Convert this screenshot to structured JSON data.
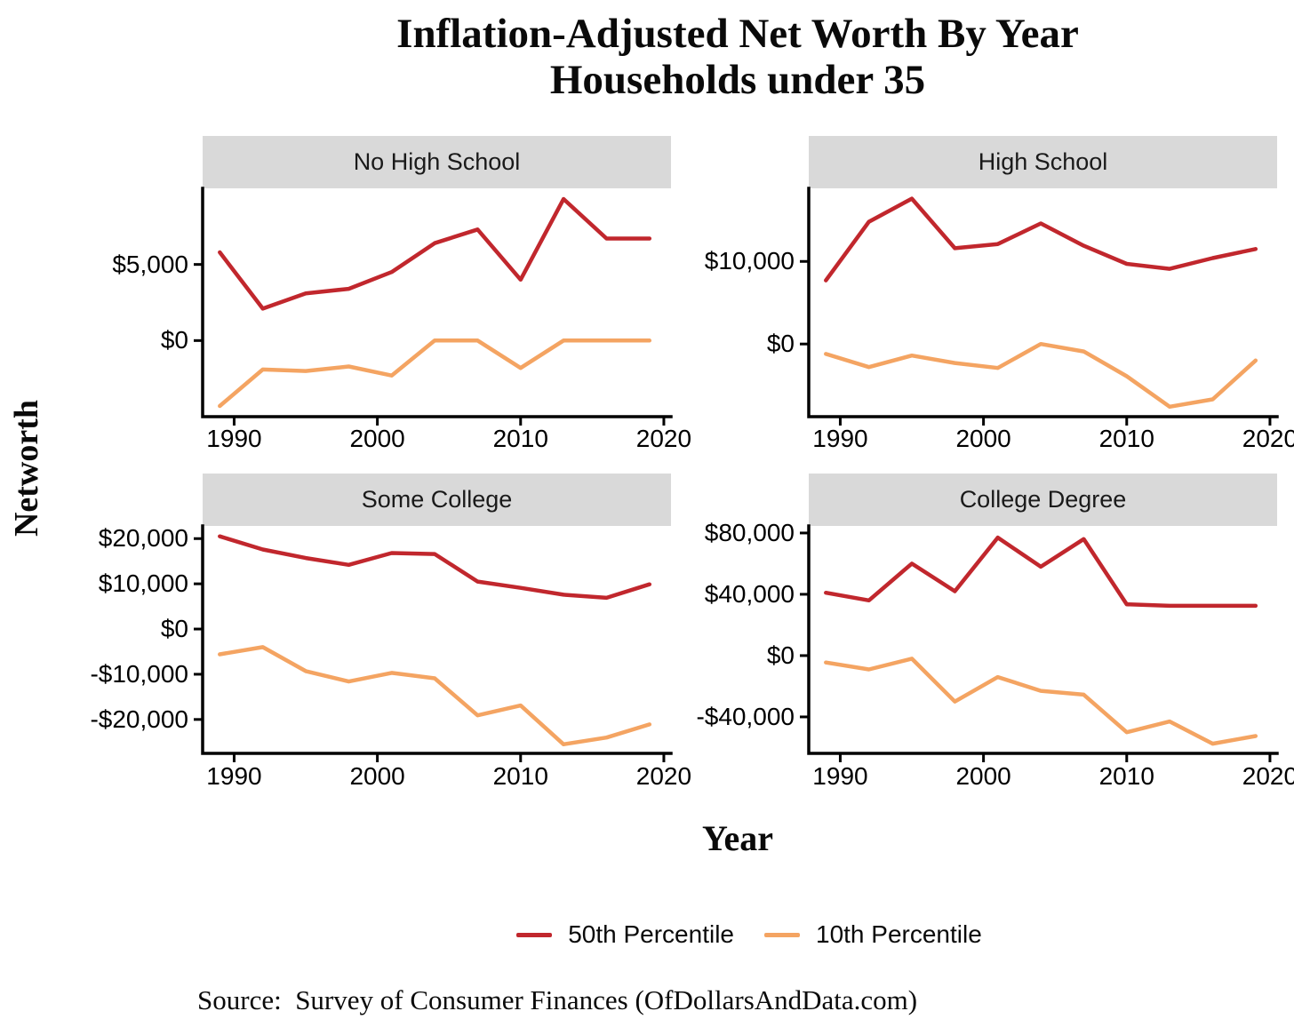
{
  "title": {
    "line1": "Inflation-Adjusted Net Worth By Year",
    "line2": "Households under 35"
  },
  "axis": {
    "x_label": "Year",
    "y_label": "Networth"
  },
  "legend": {
    "items": [
      {
        "label": "50th Percentile",
        "color": "#C1272D"
      },
      {
        "label": "10th Percentile",
        "color": "#F4A462"
      }
    ]
  },
  "source_note": "Source:  Survey of Consumer Finances (OfDollarsAndData.com)",
  "chart_data": {
    "type": "line",
    "title": "Inflation-Adjusted Net Worth By Year",
    "subtitle": "Households under 35",
    "xlabel": "Year",
    "ylabel": "Networth",
    "grid": false,
    "legend_position": "bottom",
    "x": [
      1989,
      1992,
      1995,
      1998,
      2001,
      2004,
      2007,
      2010,
      2013,
      2016,
      2019
    ],
    "xlim": [
      1987.8,
      2020.5
    ],
    "xticks": [
      {
        "value": 1990,
        "label": "1990"
      },
      {
        "value": 2000,
        "label": "2000"
      },
      {
        "value": 2010,
        "label": "2010"
      },
      {
        "value": 2020,
        "label": "2020"
      }
    ],
    "facets": [
      {
        "label": "No High School",
        "ylim": [
          -5000,
          10000
        ],
        "yticks": [
          {
            "value": 5000,
            "label": "$5,000"
          },
          {
            "value": 0,
            "label": "$0"
          }
        ],
        "series": [
          {
            "name": "50th Percentile",
            "color": "#C1272D",
            "values": [
              5800,
              2100,
              3100,
              3400,
              4500,
              6400,
              7300,
              4000,
              9300,
              6700,
              6700
            ]
          },
          {
            "name": "10th Percentile",
            "color": "#F4A462",
            "values": [
              -4300,
              -1900,
              -2000,
              -1700,
              -2300,
              0,
              0,
              -1800,
              0,
              0,
              0
            ]
          }
        ]
      },
      {
        "label": "High School",
        "ylim": [
          -8800,
          18850
        ],
        "yticks": [
          {
            "value": 10000,
            "label": "$10,000"
          },
          {
            "value": 0,
            "label": "$0"
          }
        ],
        "series": [
          {
            "name": "50th Percentile",
            "color": "#C1272D",
            "values": [
              7700,
              14800,
              17600,
              11600,
              12100,
              14600,
              11900,
              9700,
              9100,
              10400,
              11500
            ]
          },
          {
            "name": "10th Percentile",
            "color": "#F4A462",
            "values": [
              -1200,
              -2800,
              -1400,
              -2300,
              -2900,
              0,
              -900,
              -3900,
              -7600,
              -6700,
              -2000
            ]
          }
        ]
      },
      {
        "label": "Some College",
        "ylim": [
          -27500,
          22800
        ],
        "yticks": [
          {
            "value": 20000,
            "label": "$20,000"
          },
          {
            "value": 10000,
            "label": "$10,000"
          },
          {
            "value": 0,
            "label": "$0"
          },
          {
            "value": -10000,
            "label": "-$10,000"
          },
          {
            "value": -20000,
            "label": "-$20,000"
          }
        ],
        "series": [
          {
            "name": "50th Percentile",
            "color": "#C1272D",
            "values": [
              20500,
              17600,
              15700,
              14200,
              16800,
              16600,
              10500,
              9100,
              7600,
              6900,
              9900
            ]
          },
          {
            "name": "10th Percentile",
            "color": "#F4A462",
            "values": [
              -5600,
              -4000,
              -9300,
              -11600,
              -9700,
              -10900,
              -19100,
              -16900,
              -25500,
              -24000,
              -21100
            ]
          }
        ]
      },
      {
        "label": "College Degree",
        "ylim": [
          -63800,
          84600
        ],
        "yticks": [
          {
            "value": 80000,
            "label": "$80,000"
          },
          {
            "value": 40000,
            "label": "$40,000"
          },
          {
            "value": 0,
            "label": "$0"
          },
          {
            "value": -40000,
            "label": "-$40,000"
          }
        ],
        "series": [
          {
            "name": "50th Percentile",
            "color": "#C1272D",
            "values": [
              41000,
              36000,
              60000,
              42000,
              77000,
              58000,
              76000,
              33500,
              32500,
              32500,
              32500
            ]
          },
          {
            "name": "10th Percentile",
            "color": "#F4A462",
            "values": [
              -4500,
              -9000,
              -2000,
              -30000,
              -14000,
              -23000,
              -25500,
              -50000,
              -43000,
              -57500,
              -52500
            ]
          }
        ]
      }
    ]
  }
}
